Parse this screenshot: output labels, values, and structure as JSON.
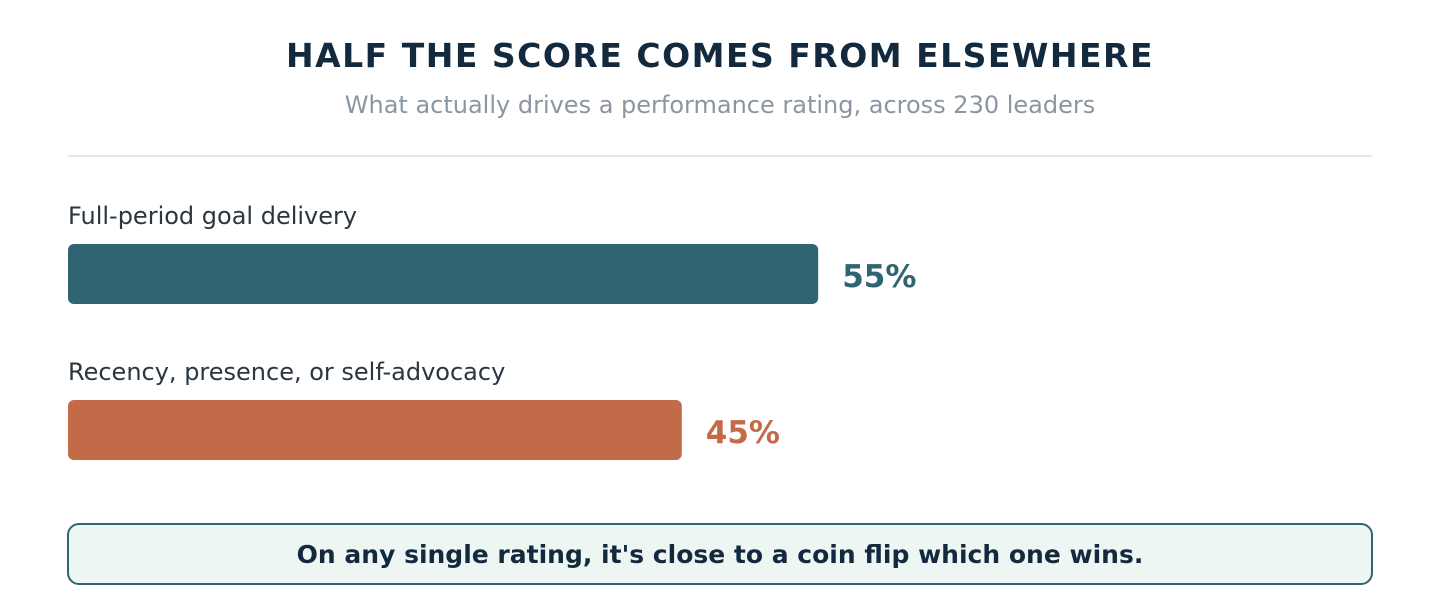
{
  "title": "HALF THE SCORE COMES FROM ELSEWHERE",
  "subtitle": "What actually drives a performance rating, across 230 leaders",
  "callout": "On any single rating, it's close to a coin flip which one wins.",
  "chart_data": {
    "type": "bar",
    "orientation": "horizontal",
    "categories": [
      "Full-period goal delivery",
      "Recency, presence, or self-advocacy"
    ],
    "values": [
      55,
      45
    ],
    "value_labels": [
      "55%",
      "45%"
    ],
    "colors": [
      "#2f6472",
      "#c36b48"
    ],
    "xlim": [
      0,
      100
    ],
    "grid": false,
    "legend": "none"
  }
}
